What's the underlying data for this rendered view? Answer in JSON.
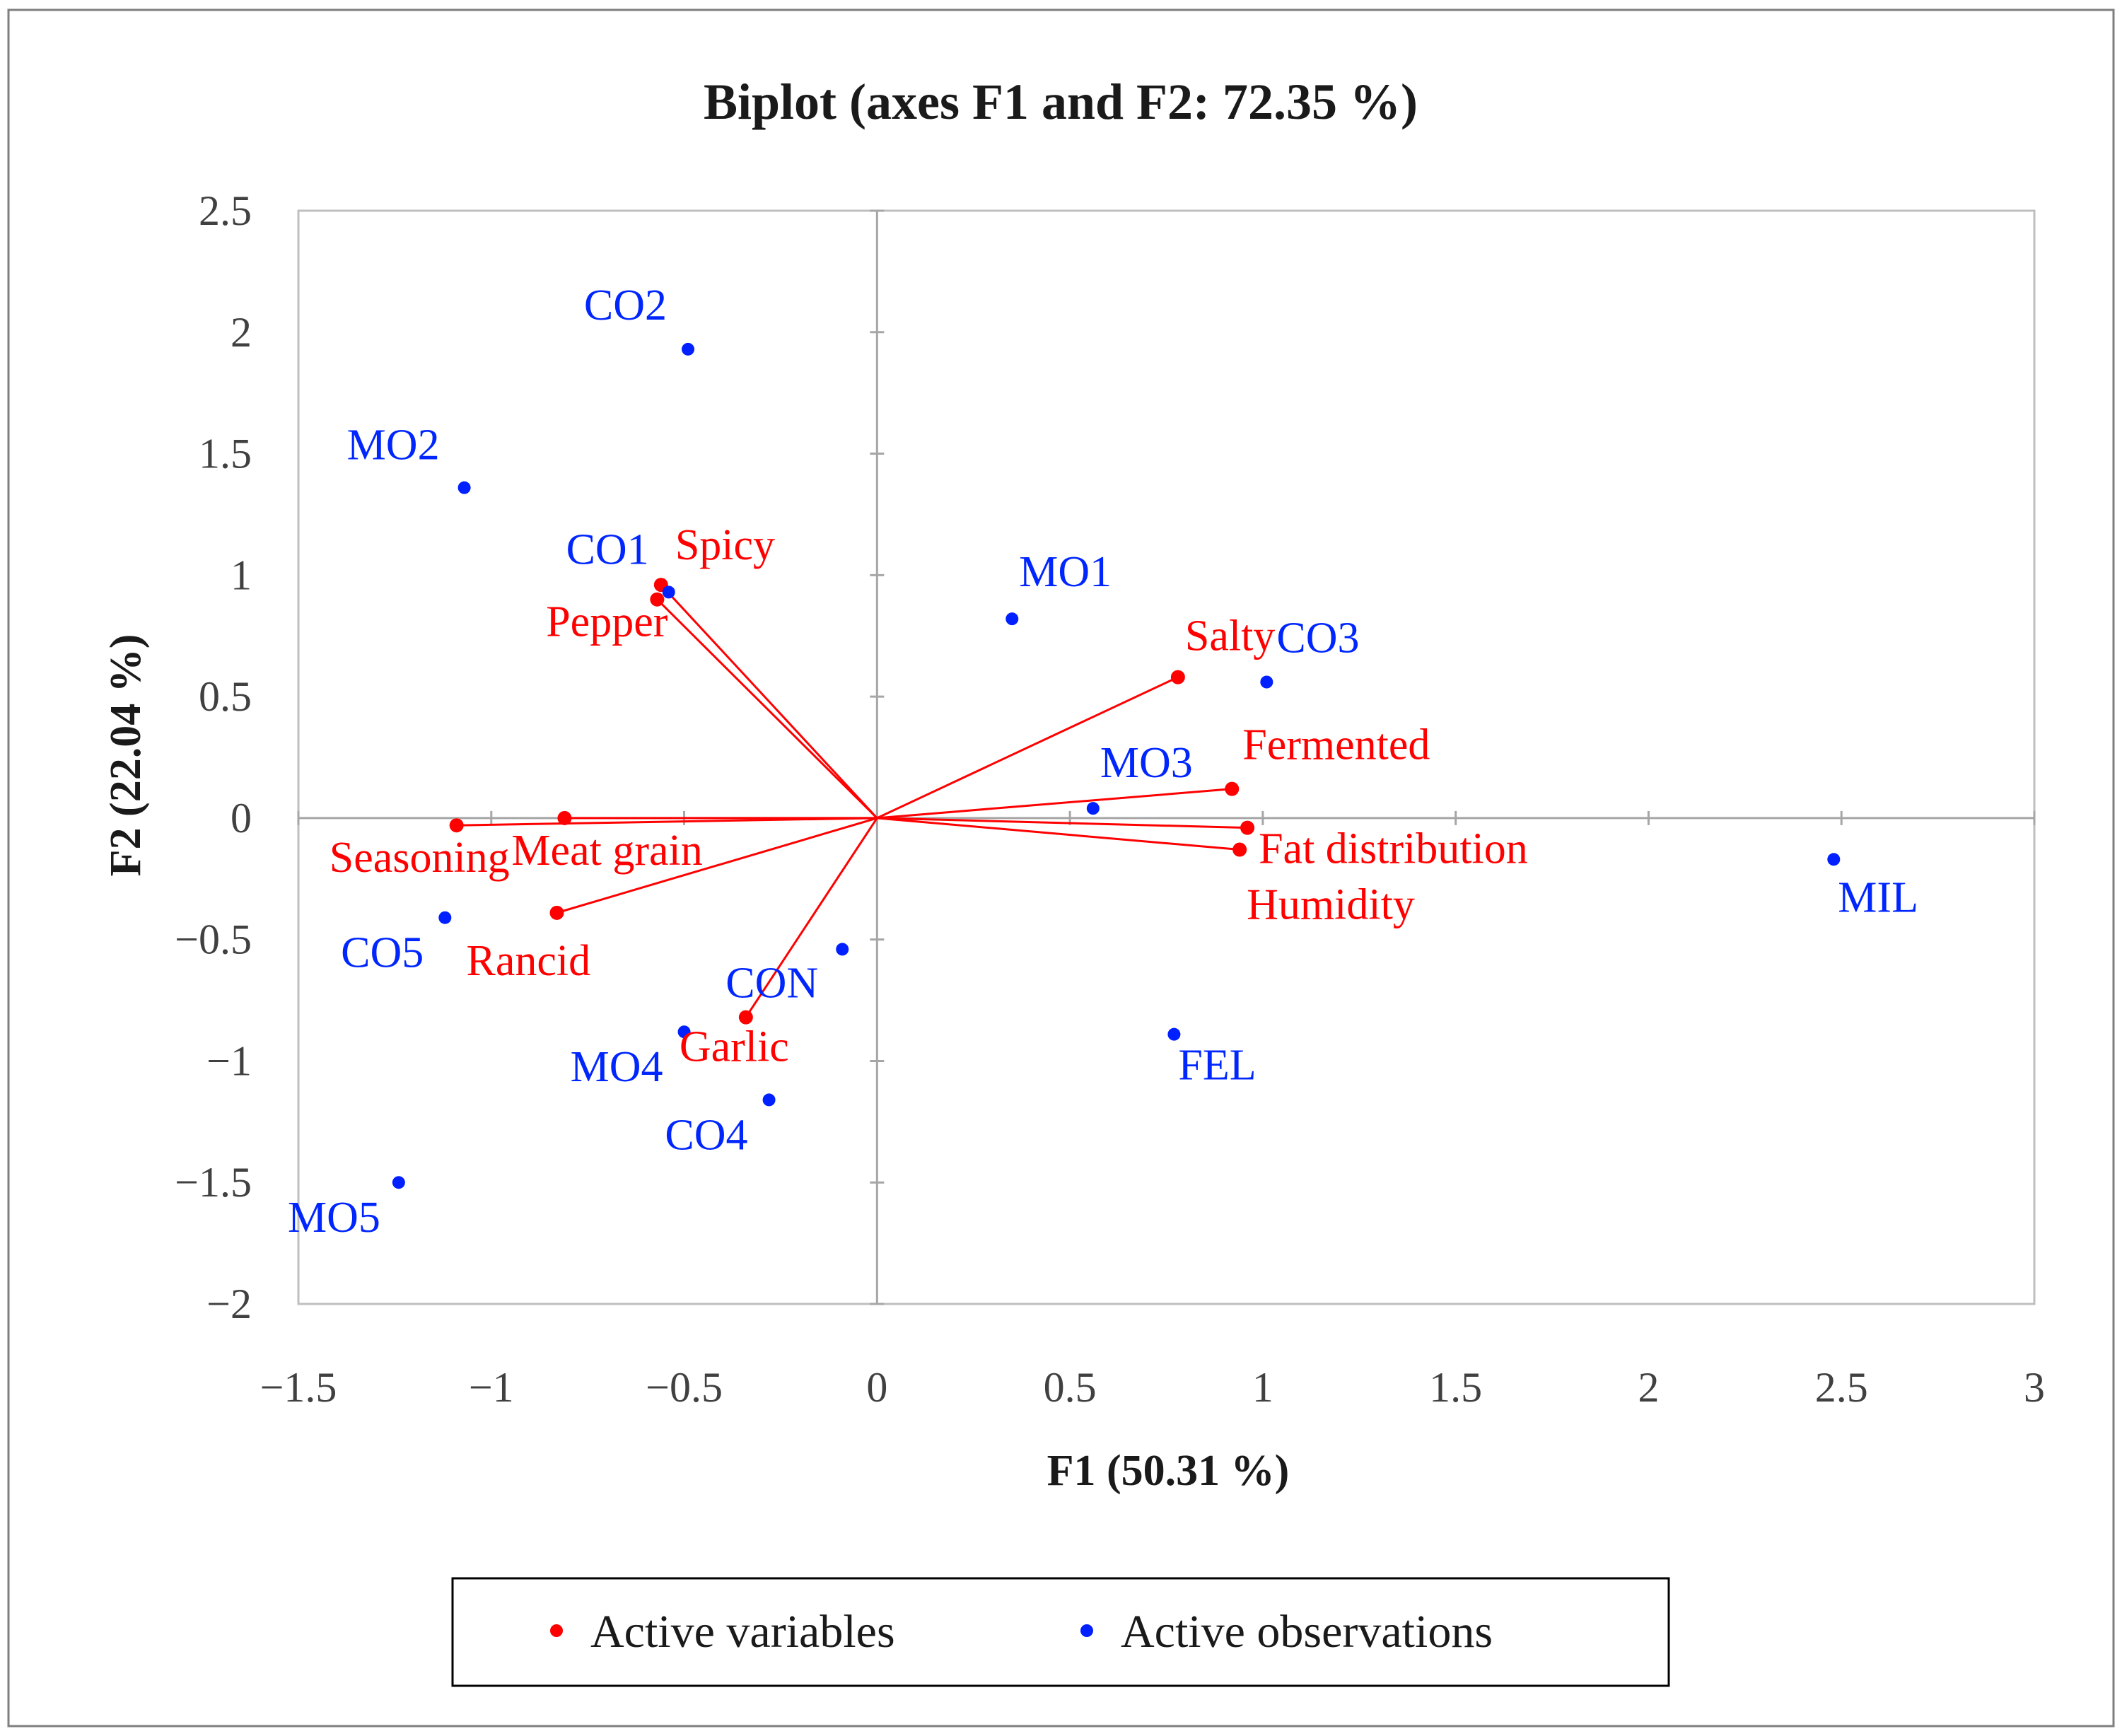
{
  "chart_data": {
    "type": "scatter",
    "title": "Biplot (axes F1 and F2: 72.35 %)",
    "xlabel": "F1 (50.31 %)",
    "ylabel": "F2 (22.04 %)",
    "xlim": [
      -1.5,
      3
    ],
    "ylim": [
      -2,
      2.5
    ],
    "xticks": [
      -1.5,
      -1,
      -0.5,
      0,
      0.5,
      1,
      1.5,
      2,
      2.5,
      3
    ],
    "yticks": [
      -2,
      -1.5,
      -1,
      -0.5,
      0,
      0.5,
      1,
      1.5,
      2,
      2.5
    ],
    "xtick_labels": [
      "−1.5",
      "−1",
      "−0.5",
      "0",
      "0.5",
      "1",
      "1.5",
      "2",
      "2.5",
      "3"
    ],
    "ytick_labels": [
      "−2",
      "−1.5",
      "−1",
      "−0.5",
      "0",
      "0.5",
      "1",
      "1.5",
      "2",
      "2.5"
    ],
    "grid": false,
    "legend_position": "bottom",
    "series": [
      {
        "name": "Active variables",
        "color": "#ff0000",
        "vectors_from_origin": true,
        "points": [
          {
            "label": "Spicy",
            "x": -0.56,
            "y": 0.96
          },
          {
            "label": "Pepper",
            "x": -0.57,
            "y": 0.9
          },
          {
            "label": "Salty",
            "x": 0.78,
            "y": 0.58
          },
          {
            "label": "Fermented",
            "x": 0.92,
            "y": 0.12
          },
          {
            "label": "Fat distribution",
            "x": 0.96,
            "y": -0.04
          },
          {
            "label": "Humidity",
            "x": 0.94,
            "y": -0.13
          },
          {
            "label": "Seasoning",
            "x": -1.09,
            "y": -0.03
          },
          {
            "label": "Meat grain",
            "x": -0.81,
            "y": 0.0
          },
          {
            "label": "Rancid",
            "x": -0.83,
            "y": -0.39
          },
          {
            "label": "Garlic",
            "x": -0.34,
            "y": -0.82
          }
        ]
      },
      {
        "name": "Active observations",
        "color": "#0020ff",
        "points": [
          {
            "label": "CO2",
            "x": -0.49,
            "y": 1.93
          },
          {
            "label": "MO2",
            "x": -1.07,
            "y": 1.36
          },
          {
            "label": "CO1",
            "x": -0.54,
            "y": 0.93
          },
          {
            "label": "MO1",
            "x": 0.35,
            "y": 0.82
          },
          {
            "label": "CO3",
            "x": 1.01,
            "y": 0.56
          },
          {
            "label": "MO3",
            "x": 0.56,
            "y": 0.04
          },
          {
            "label": "MIL",
            "x": 2.48,
            "y": -0.17
          },
          {
            "label": "CO5",
            "x": -1.12,
            "y": -0.41
          },
          {
            "label": "CON",
            "x": -0.09,
            "y": -0.54
          },
          {
            "label": "MO4",
            "x": -0.5,
            "y": -0.88
          },
          {
            "label": "FEL",
            "x": 0.77,
            "y": -0.89
          },
          {
            "label": "CO4",
            "x": -0.28,
            "y": -1.16
          },
          {
            "label": "MO5",
            "x": -1.24,
            "y": -1.5
          }
        ]
      }
    ]
  }
}
